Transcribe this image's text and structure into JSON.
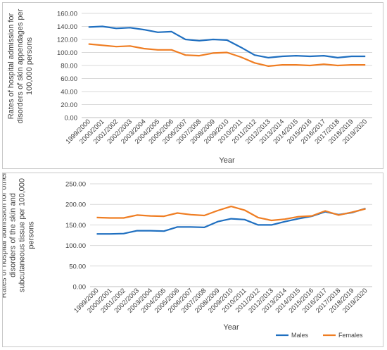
{
  "colors": {
    "males": "#1f6fc0",
    "females": "#ef7d22",
    "grid": "#d9d9d9",
    "axis": "#bfbfbf"
  },
  "chart_data": [
    {
      "type": "line",
      "ylabel": "Rates of hospital admission for disorders of skin appendages per 100,000 persons",
      "ylabel_lines": [
        "Rates of hospital admission for",
        "disorders of skin appendages per",
        "100,000 persons"
      ],
      "xlabel": "Year",
      "ylim": [
        0,
        160
      ],
      "yticks": [
        "0.00",
        "20.00",
        "40.00",
        "60.00",
        "80.00",
        "100.00",
        "120.00",
        "140.00",
        "160.00"
      ],
      "categories": [
        "1999/2000",
        "2000/2001",
        "2001/2002",
        "2002/2003",
        "2003/2004",
        "2004/2005",
        "2005/2006",
        "2006/2007",
        "2007/2008",
        "2008/2009",
        "2009/2010",
        "2010/2011",
        "2011/2012",
        "2012/2013",
        "2013/2014",
        "2014/2015",
        "2015/2016",
        "2016/2017",
        "2017/2018",
        "2018/2019",
        "2019/2020"
      ],
      "series": [
        {
          "key": "males",
          "values": [
            139,
            140,
            137,
            138,
            135,
            131,
            132,
            120,
            118,
            120,
            119,
            108,
            96,
            92,
            94,
            95,
            94,
            95,
            92,
            94,
            94
          ]
        },
        {
          "key": "females",
          "values": [
            113,
            111,
            109,
            110,
            106,
            104,
            104,
            96,
            95,
            99,
            100,
            93,
            84,
            79,
            81,
            81,
            80,
            82,
            80,
            81,
            81
          ]
        }
      ],
      "legend": false,
      "grid": true
    },
    {
      "type": "line",
      "ylabel": "Rates of hospital admission for other disorders of the skin and subcutaneous tissue per 100,000 persons",
      "ylabel_lines": [
        "Rates of hospital admission for other",
        "disorders of the skin and",
        "subcutaneous tissue per 100,000",
        "persons"
      ],
      "xlabel": "Year",
      "ylim": [
        0,
        250
      ],
      "yticks": [
        "0.00",
        "50.00",
        "100.00",
        "150.00",
        "200.00",
        "250.00"
      ],
      "categories": [
        "1999/2000",
        "2000/2001",
        "2001/2002",
        "2002/2003",
        "2003/2004",
        "2004/2005",
        "2005/2006",
        "2006/2007",
        "2007/2008",
        "2008/2009",
        "2009/2010",
        "2010/2011",
        "2011/2012",
        "2012/2013",
        "2013/2014",
        "2014/2015",
        "2015/2016",
        "2016/2017",
        "2017/2018",
        "2018/2019",
        "2019/2020"
      ],
      "series": [
        {
          "key": "males",
          "name": "Males",
          "values": [
            128,
            128,
            129,
            136,
            136,
            135,
            145,
            145,
            144,
            158,
            165,
            163,
            150,
            150,
            158,
            165,
            171,
            182,
            175,
            180,
            190
          ]
        },
        {
          "key": "females",
          "name": "Females",
          "values": [
            168,
            167,
            167,
            174,
            172,
            171,
            179,
            175,
            173,
            185,
            195,
            186,
            168,
            161,
            164,
            170,
            172,
            184,
            174,
            181,
            189
          ]
        }
      ],
      "legend": true,
      "legend_position": "bottom-right",
      "grid": true
    }
  ]
}
